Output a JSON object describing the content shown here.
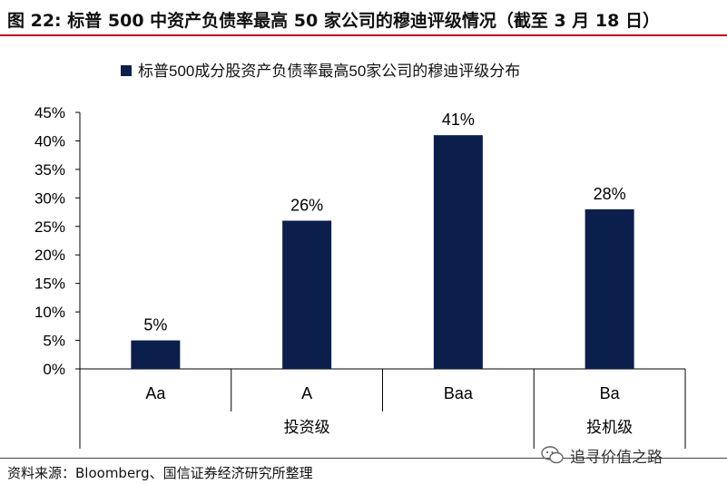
{
  "figure": {
    "title": "图 22: 标普 500 中资产负债率最高 50 家公司的穆迪评级情况（截至 3 月 18 日）",
    "source": "资料来源：Bloomberg、国信证券经济研究所整理",
    "watermark": "追寻价值之路"
  },
  "chart_data": {
    "type": "bar",
    "categories": [
      "Aa",
      "A",
      "Baa",
      "Ba"
    ],
    "series": [
      {
        "name": "标普500成分股资产负债率最高50家公司的穆迪评级分布",
        "values": [
          5,
          26,
          41,
          28
        ]
      }
    ],
    "data_labels": [
      "5%",
      "26%",
      "41%",
      "28%"
    ],
    "ylim": [
      0,
      45
    ],
    "yticks": [
      "0%",
      "5%",
      "10%",
      "15%",
      "20%",
      "25%",
      "30%",
      "35%",
      "40%",
      "45%"
    ],
    "groups": [
      {
        "label": "投资级",
        "categories": [
          "Aa",
          "A",
          "Baa"
        ]
      },
      {
        "label": "投机级",
        "categories": [
          "Ba"
        ]
      }
    ],
    "bar_color": "#0b1f4d",
    "legend_position": "top",
    "grid": false
  }
}
